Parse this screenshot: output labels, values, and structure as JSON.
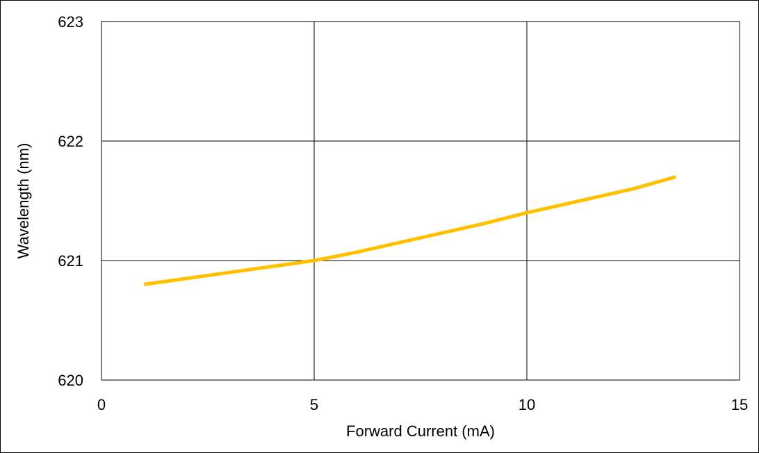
{
  "chart_data": {
    "type": "line",
    "title": "",
    "xlabel": "Forward Current (mA)",
    "ylabel": "Wavelength (nm)",
    "xlim": [
      0,
      15
    ],
    "ylim": [
      620,
      623
    ],
    "xticks": [
      0,
      5,
      10,
      15
    ],
    "yticks": [
      620,
      621,
      622,
      623
    ],
    "xtick_labels": [
      "0",
      "5",
      "10",
      "15"
    ],
    "ytick_labels": [
      "620",
      "621",
      "622",
      "623"
    ],
    "grid": true,
    "legend": "none",
    "series": [
      {
        "color": "#FFC000",
        "x": [
          1,
          2,
          3,
          4,
          5,
          6,
          7,
          8,
          9,
          10,
          11,
          12,
          12.5,
          13,
          13.5
        ],
        "y": [
          620.8,
          620.85,
          620.9,
          620.95,
          621.0,
          621.07,
          621.15,
          621.23,
          621.31,
          621.4,
          621.48,
          621.56,
          621.6,
          621.65,
          621.7
        ]
      }
    ]
  }
}
